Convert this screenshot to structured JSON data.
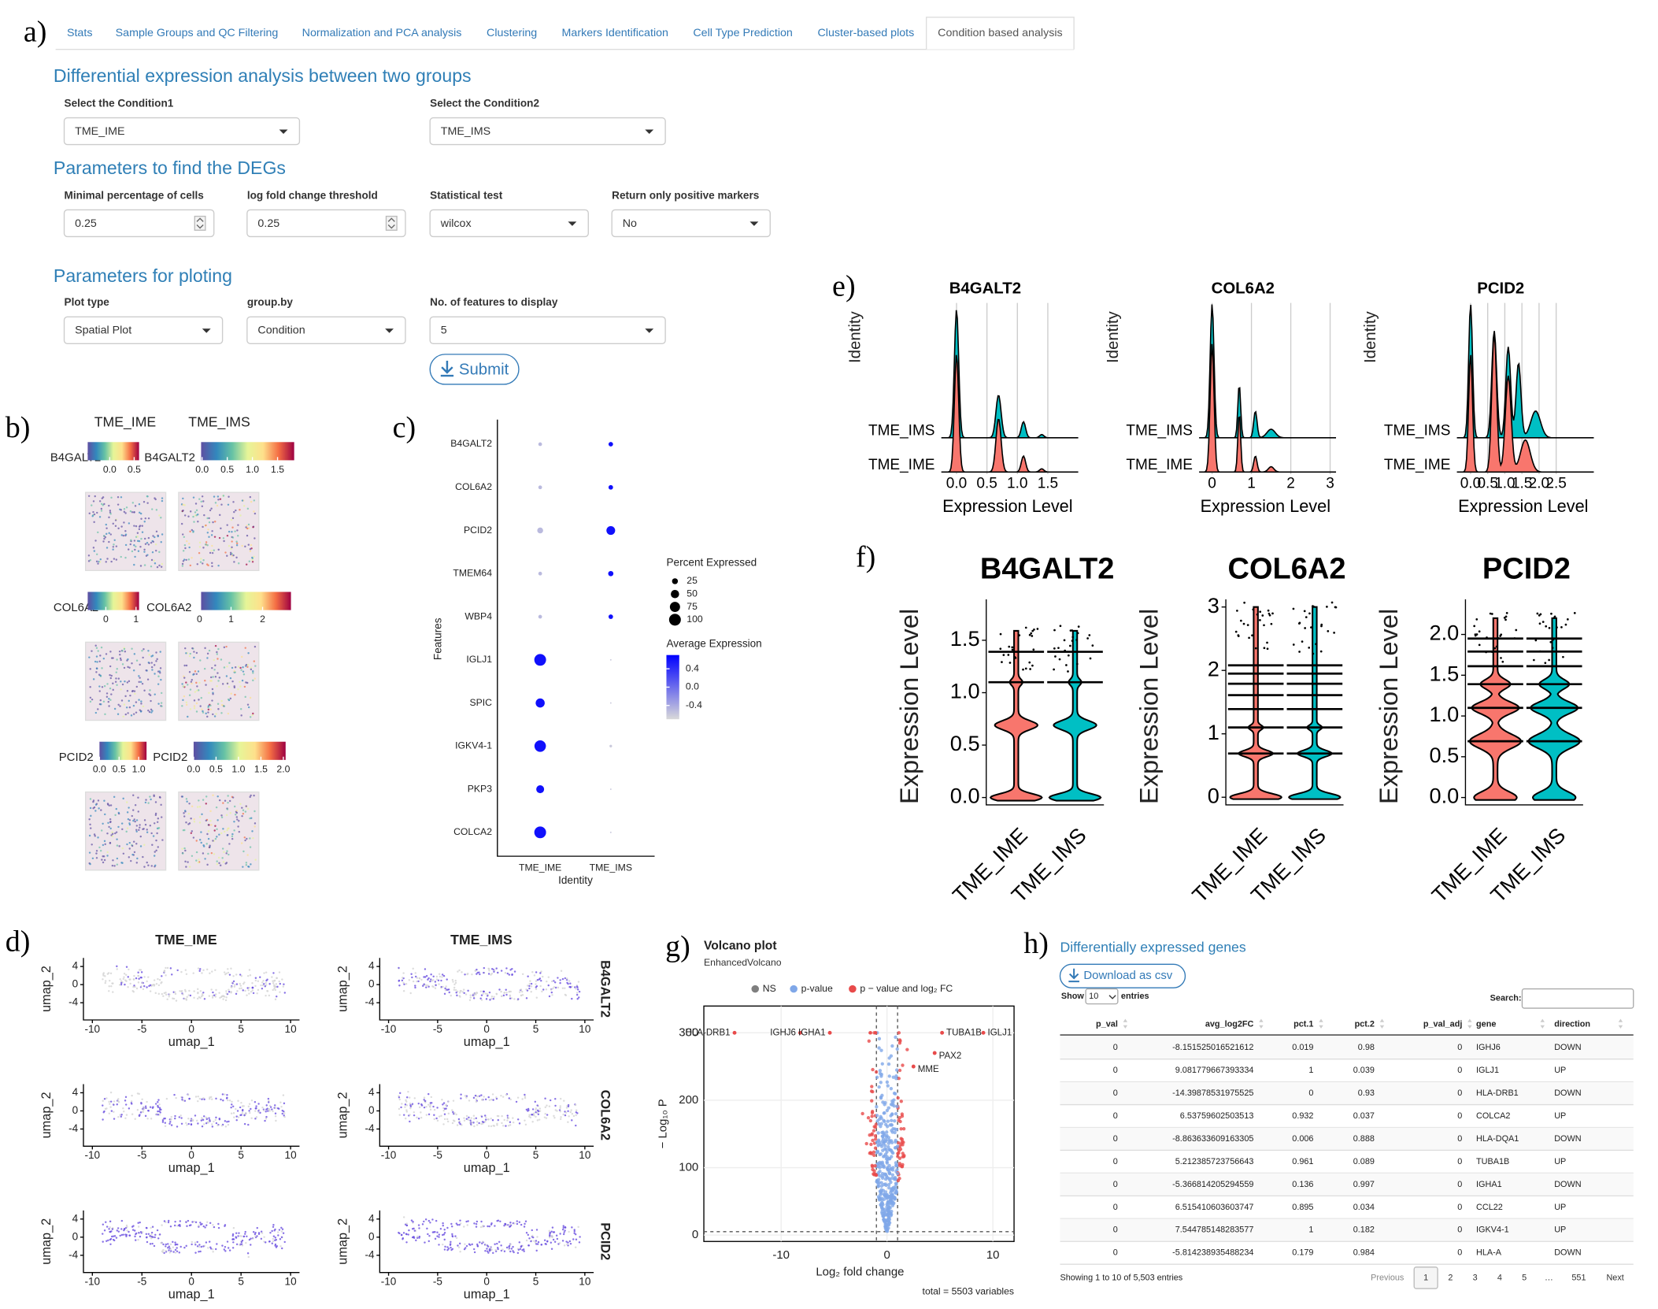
{
  "panel_labels": [
    "a)",
    "b)",
    "c)",
    "d)",
    "e)",
    "f)",
    "g)",
    "h)"
  ],
  "tabs": [
    "Stats",
    "Sample Groups and QC Filtering",
    "Normalization and PCA analysis",
    "Clustering",
    "Markers Identification",
    "Cell Type Prediction",
    "Cluster-based plots",
    "Condition based analysis"
  ],
  "active_tab": 7,
  "sections": [
    "Differential expression analysis between two groups",
    "Parameters to find the DEGs",
    "Parameters for ploting"
  ],
  "fields": [
    {
      "label": "Select the Condition1",
      "value": "TME_IME",
      "kind": "select"
    },
    {
      "label": "Select the Condition2",
      "value": "TME_IMS",
      "kind": "select"
    },
    {
      "label": "Minimal percentage of cells",
      "value": "0.25",
      "kind": "number"
    },
    {
      "label": "log fold change threshold",
      "value": "0.25",
      "kind": "number"
    },
    {
      "label": "Statistical test",
      "value": "wilcox",
      "kind": "select"
    },
    {
      "label": "Return only positive markers",
      "value": "No",
      "kind": "select"
    },
    {
      "label": "Plot type",
      "value": "Spatial Plot",
      "kind": "select"
    },
    {
      "label": "group.by",
      "value": "Condition",
      "kind": "select"
    },
    {
      "label": "No. of features to display",
      "value": "5",
      "kind": "select"
    }
  ],
  "submit": "Submit",
  "spatial": {
    "conditions": [
      "TME_IME",
      "TME_IMS"
    ],
    "palette": [
      "#5e4fa2",
      "#3288bd",
      "#66c2a5",
      "#e6f598",
      "#fee08b",
      "#f46d43",
      "#9e0142"
    ],
    "rows": [
      {
        "gene": "B4GALT2",
        "bars": [
          {
            "lim": [
              -0.45,
              0.6
            ],
            "ticks": [
              {
                "value": 0,
                "label": "0.0"
              },
              0.5
            ]
          },
          {
            "lim": [
              -0.02,
              1.83
            ],
            "ticks": [
              {
                "value": 0,
                "label": "0.0"
              },
              0.5,
              {
                "value": 1,
                "label": "1.0"
              },
              1.5
            ]
          }
        ]
      },
      {
        "gene": "COL6A2",
        "bars": [
          {
            "lim": [
              -0.6,
              1.1
            ],
            "ticks": [
              0,
              1
            ]
          },
          {
            "lim": [
              0.05,
              2.9
            ],
            "ticks": [
              0,
              1,
              2
            ]
          }
        ]
      },
      {
        "gene": "PCID2",
        "bars": [
          {
            "lim": [
              0,
              1.2
            ],
            "ticks": [
              {
                "value": 0,
                "label": "0.0"
              },
              0.5,
              {
                "value": 1,
                "label": "1.0"
              }
            ]
          },
          {
            "lim": [
              0,
              2.05
            ],
            "ticks": [
              {
                "value": 0,
                "label": "0.0"
              },
              0.5,
              {
                "value": 1,
                "label": "1.0"
              },
              1.5,
              {
                "value": 2,
                "label": "2.0"
              }
            ]
          }
        ]
      }
    ]
  },
  "dotplot": {
    "type": "dot",
    "features": [
      "B4GALT2",
      "COL6A2",
      "PCID2",
      "TMEM64",
      "WBP4",
      "IGLJ1",
      "SPIC",
      "IGKV4-1",
      "PKP3",
      "COLCA2"
    ],
    "identities": [
      "TME_IME",
      "TME_IMS"
    ],
    "pct": [
      [
        10,
        15
      ],
      [
        10,
        15
      ],
      [
        25,
        55
      ],
      [
        10,
        20
      ],
      [
        10,
        15
      ],
      [
        100,
        1
      ],
      [
        60,
        1
      ],
      [
        95,
        5
      ],
      [
        45,
        1
      ],
      [
        100,
        1
      ]
    ],
    "avg": [
      [
        -0.5,
        0.6
      ],
      [
        -0.5,
        0.6
      ],
      [
        -0.5,
        0.6
      ],
      [
        -0.5,
        0.6
      ],
      [
        -0.5,
        0.6
      ],
      [
        0.6,
        -0.6
      ],
      [
        0.6,
        -0.6
      ],
      [
        0.6,
        -0.6
      ],
      [
        0.6,
        -0.6
      ],
      [
        0.6,
        -0.6
      ]
    ],
    "xlabel": "Identity",
    "ylabel": "Features",
    "size_legend": {
      "title": "Percent Expressed",
      "values": [
        25,
        50,
        75,
        100
      ]
    },
    "color_legend": {
      "title": "Average Expression",
      "lim": [
        -0.7,
        0.7
      ],
      "ticks": [
        0.4,
        {
          "value": 0,
          "label": "0.0"
        },
        -0.4
      ],
      "low_color": "#d9d9d9",
      "high_color": "#0000ff"
    }
  },
  "umap": {
    "conditions": [
      "TME_IME",
      "TME_IMS"
    ],
    "genes": [
      "B4GALT2",
      "COL6A2",
      "PCID2"
    ],
    "xlabel": "umap_1",
    "ylabel": "umap_2",
    "xlim": [
      -10.9,
      10.9
    ],
    "xticks": [
      -10,
      -5,
      0,
      5,
      10
    ],
    "ylim": [
      -7.8,
      5.9
    ],
    "yticks": [
      -4,
      0,
      4
    ],
    "colors": [
      "#d3d3d3",
      "#6a4fe0"
    ]
  },
  "ridge": {
    "xlabel": "Expression Level",
    "ylabel": "Identity",
    "categories": [
      "TME_IME",
      "TME_IMS"
    ],
    "colors": [
      "#f8766d",
      "#00bfc4"
    ],
    "panels": [
      {
        "title": "B4GALT2",
        "xlim": [
          -0.25,
          2.0
        ],
        "xticks": [
          {
            "value": 0,
            "label": "0.0"
          },
          0.5,
          {
            "value": 1,
            "label": "1.0"
          },
          1.5
        ]
      },
      {
        "title": "COL6A2",
        "xlim": [
          -0.33,
          3.15
        ],
        "xticks": [
          0,
          1,
          2,
          3
        ]
      },
      {
        "title": "PCID2",
        "xlim": [
          -0.4,
          3.6
        ],
        "xticks": [
          {
            "value": 0,
            "label": "0.0"
          },
          0.5,
          {
            "value": 1,
            "label": "1.0"
          },
          1.5,
          {
            "value": 2,
            "label": "2.0"
          },
          2.5
        ]
      }
    ]
  },
  "violin": {
    "ylabel": "Expression Level",
    "categories": [
      "TME_IME",
      "TME_IMS"
    ],
    "colors": [
      "#f8766d",
      "#00bfc4"
    ],
    "panels": [
      {
        "title": "B4GALT2",
        "ylim": [
          -0.07,
          1.89
        ],
        "yticks": [
          {
            "value": 0,
            "label": "0.0"
          },
          0.5,
          {
            "value": 1,
            "label": "1.0"
          },
          1.5
        ]
      },
      {
        "title": "COL6A2",
        "ylim": [
          -0.12,
          3.12
        ],
        "yticks": [
          0,
          1,
          2,
          3
        ]
      },
      {
        "title": "PCID2",
        "ylim": [
          -0.09,
          2.43
        ],
        "yticks": [
          {
            "value": 0,
            "label": "0.0"
          },
          0.5,
          {
            "value": 1,
            "label": "1.0"
          },
          1.5,
          {
            "value": 2,
            "label": "2.0"
          }
        ]
      }
    ]
  },
  "volcano": {
    "type": "scatter",
    "title": "Volcano plot",
    "subtitle": "EnhancedVolcano",
    "legend": [
      "NS",
      "p-value",
      "p − value and log₂ FC"
    ],
    "colors": [
      "#7f7f7f",
      "#7fa7e8",
      "#e84a4a"
    ],
    "xlabel": "Log₂ fold change",
    "ylabel": "− Log₁₀ P",
    "caption": "total = 5503 variables",
    "xlim": [
      -17.3,
      12.0
    ],
    "xticks": [
      -10,
      0,
      10
    ],
    "ylim": [
      -9.5,
      339.7
    ],
    "yticks": [
      0,
      100,
      200,
      300
    ],
    "genes": [
      {
        "gene": "HLA-DRB1",
        "x": -14.4,
        "y": 300
      },
      {
        "gene": "IGHJ6",
        "x": -8.2,
        "y": 300
      },
      {
        "gene": "IGHA1",
        "x": -5.4,
        "y": 300
      },
      {
        "gene": "IGLJ1",
        "x": 9.1,
        "y": 300
      },
      {
        "gene": "TUBA1B",
        "x": 5.2,
        "y": 300
      },
      {
        "gene": "PAX2",
        "x": 4.5,
        "y": 270
      },
      {
        "gene": "MME",
        "x": 2.5,
        "y": 250
      }
    ]
  },
  "table": {
    "title": "Differentially expressed genes",
    "download": "Download as csv",
    "show": "Show",
    "length": "10",
    "entries": "entries",
    "search": "Search:",
    "columns": [
      "p_val",
      "avg_log2FC",
      "pct.1",
      "pct.2",
      "p_val_adj",
      "gene",
      "direction"
    ],
    "rows": [
      [
        0,
        -8.151525016521612,
        0.019,
        0.98,
        0,
        "IGHJ6",
        "DOWN"
      ],
      [
        0,
        9.081779667393334,
        1,
        0.039,
        0,
        "IGLJ1",
        "UP"
      ],
      [
        0,
        -14.39878531975525,
        0,
        0.93,
        0,
        "HLA-DRB1",
        "DOWN"
      ],
      [
        0,
        6.53759602503513,
        0.932,
        0.037,
        0,
        "COLCA2",
        "UP"
      ],
      [
        0,
        -8.863633609163305,
        0.006,
        0.888,
        0,
        "HLA-DQA1",
        "DOWN"
      ],
      [
        0,
        5.212385723756643,
        0.961,
        0.089,
        0,
        "TUBA1B",
        "UP"
      ],
      [
        0,
        -5.366814205294559,
        0.136,
        0.997,
        0,
        "IGHA1",
        "DOWN"
      ],
      [
        0,
        6.515410603603747,
        0.895,
        0.034,
        0,
        "CCL22",
        "UP"
      ],
      [
        0,
        7.544785148283577,
        1,
        0.182,
        0,
        "IGKV4-1",
        "UP"
      ],
      [
        0,
        -5.814238935488234,
        0.179,
        0.984,
        0,
        "HLA-A",
        "DOWN"
      ]
    ],
    "info": "Showing 1 to 10 of 5,503 entries",
    "pages": [
      "Previous",
      "1",
      "2",
      "3",
      "4",
      "5",
      "…",
      "551",
      "Next"
    ],
    "current_page": 1
  }
}
